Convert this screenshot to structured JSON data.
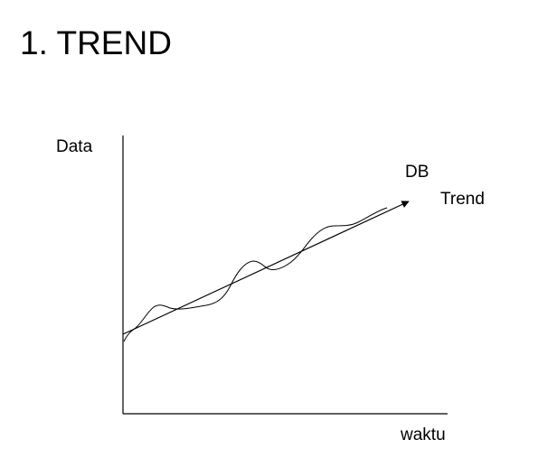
{
  "slide": {
    "title": "1. TREND"
  },
  "diagram": {
    "y_axis_label": "Data",
    "x_axis_label": "waktu",
    "series_label": "DB",
    "trend_label": "Trend",
    "line_color": "#000000"
  }
}
